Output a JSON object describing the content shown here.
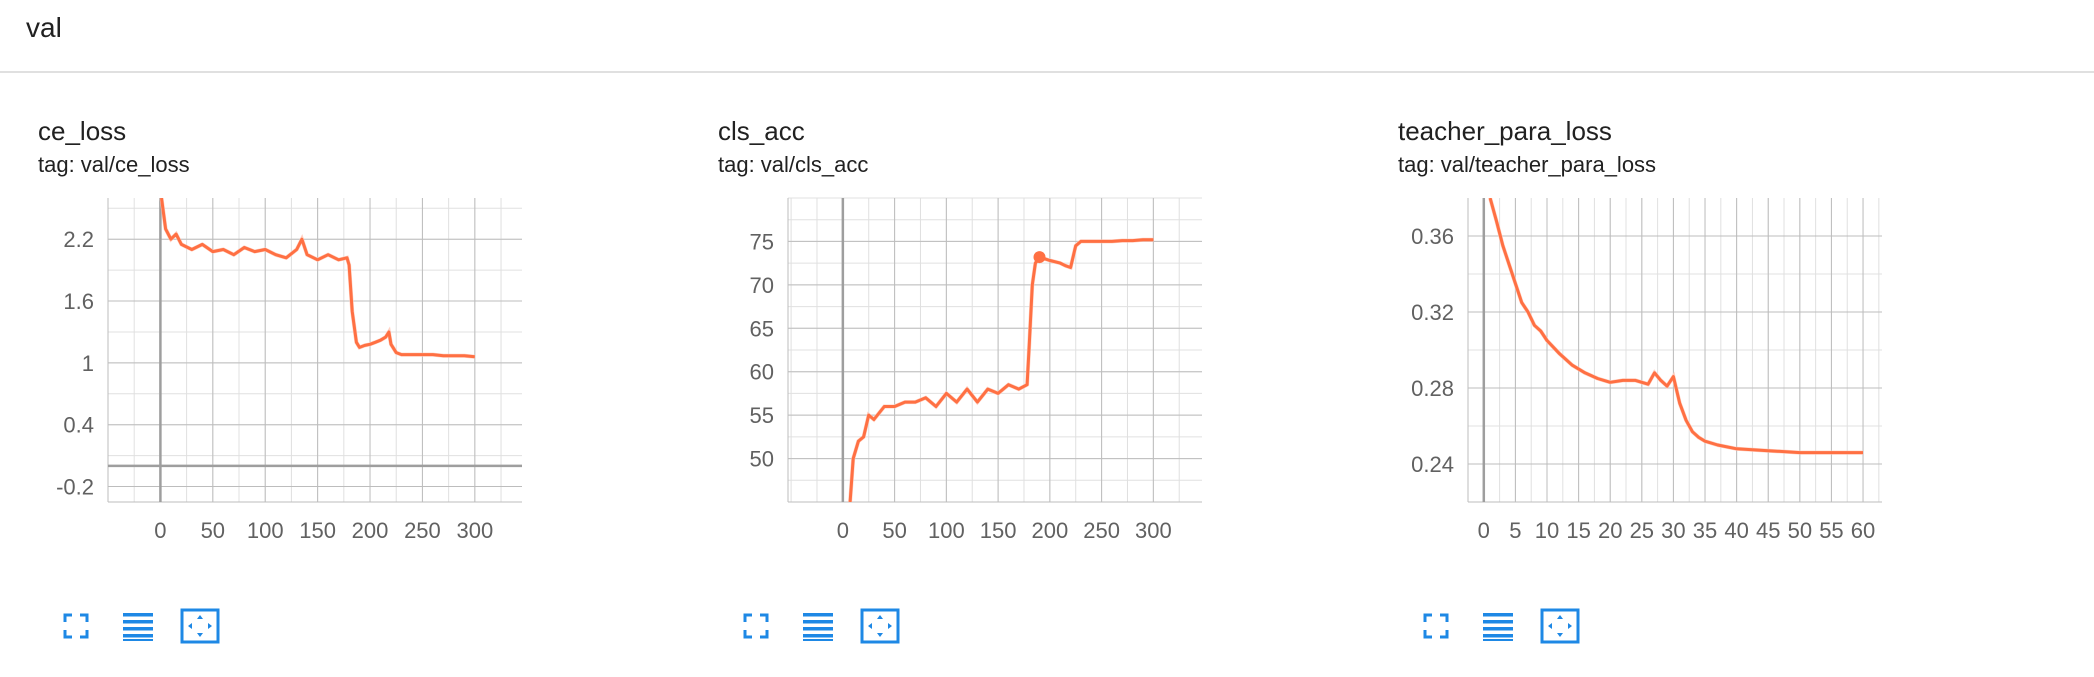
{
  "section": {
    "title": "val"
  },
  "colors": {
    "line": "#ff7043",
    "smoothed_raw": "#ffccbc",
    "grid": "#bdbdbd",
    "axis": "#9e9e9e",
    "tool": "#1e88e5"
  },
  "icons": [
    "fullscreen-icon",
    "lines-icon",
    "fit-domain-icon"
  ],
  "charts": [
    {
      "title": "ce_loss",
      "tag": "tag: val/ce_loss"
    },
    {
      "title": "cls_acc",
      "tag": "tag: val/cls_acc"
    },
    {
      "title": "teacher_para_loss",
      "tag": "tag: val/teacher_para_loss"
    }
  ],
  "chart_data": [
    {
      "type": "line",
      "title": "",
      "xlim": [
        -50,
        345
      ],
      "ylim": [
        -0.35,
        2.6
      ],
      "xticks": [
        0,
        50,
        100,
        150,
        200,
        250,
        300
      ],
      "xtick_labels": [
        "0",
        "50",
        "100",
        "150",
        "200",
        "250",
        "300"
      ],
      "yticks": [
        2.2,
        1.6,
        1,
        0.4,
        -0.2
      ],
      "ytick_labels": [
        "2.2",
        "1.6",
        "1",
        "0.4",
        "-0.2"
      ],
      "grid": true,
      "zero_axes": true,
      "series": [
        {
          "x": [
            1,
            5,
            10,
            15,
            20,
            30,
            40,
            50,
            60,
            70,
            80,
            90,
            100,
            110,
            120,
            130,
            135,
            140,
            150,
            160,
            170,
            178,
            180,
            183,
            187,
            190,
            195,
            200,
            205,
            210,
            215,
            218,
            220,
            225,
            230,
            240,
            250,
            260,
            270,
            280,
            290,
            300
          ],
          "y": [
            2.6,
            2.3,
            2.2,
            2.25,
            2.15,
            2.1,
            2.15,
            2.08,
            2.1,
            2.05,
            2.12,
            2.08,
            2.1,
            2.05,
            2.02,
            2.1,
            2.2,
            2.05,
            2.0,
            2.05,
            2.0,
            2.02,
            1.95,
            1.5,
            1.2,
            1.15,
            1.17,
            1.18,
            1.2,
            1.22,
            1.25,
            1.3,
            1.18,
            1.1,
            1.08,
            1.08,
            1.08,
            1.08,
            1.07,
            1.07,
            1.07,
            1.06
          ]
        }
      ]
    },
    {
      "type": "line",
      "title": "",
      "xlim": [
        -53,
        347
      ],
      "ylim": [
        45,
        80
      ],
      "xticks": [
        0,
        50,
        100,
        150,
        200,
        250,
        300
      ],
      "xtick_labels": [
        "0",
        "50",
        "100",
        "150",
        "200",
        "250",
        "300"
      ],
      "yticks": [
        75,
        70,
        65,
        60,
        55,
        50
      ],
      "ytick_labels": [
        "75",
        "70",
        "65",
        "60",
        "55",
        "50"
      ],
      "grid": true,
      "zero_axes": true,
      "highlight_point": {
        "x": 190,
        "y": 73.2
      },
      "series": [
        {
          "x": [
            7,
            10,
            15,
            20,
            25,
            30,
            40,
            50,
            60,
            70,
            80,
            90,
            100,
            110,
            120,
            130,
            140,
            150,
            160,
            170,
            178,
            180,
            183,
            186,
            190,
            195,
            200,
            210,
            215,
            220,
            225,
            230,
            240,
            250,
            260,
            270,
            280,
            290,
            300
          ],
          "y": [
            45,
            50,
            52,
            52.5,
            55,
            54.5,
            56,
            56,
            56.5,
            56.5,
            57,
            56,
            57.5,
            56.5,
            58,
            56.5,
            58,
            57.5,
            58.5,
            58,
            58.5,
            63,
            70,
            72.5,
            73.2,
            73,
            72.8,
            72.5,
            72.2,
            72,
            74.5,
            75,
            75,
            75,
            75,
            75.1,
            75.1,
            75.2,
            75.2
          ]
        }
      ]
    },
    {
      "type": "line",
      "title": "",
      "xlim": [
        -2.5,
        63
      ],
      "ylim": [
        0.22,
        0.38
      ],
      "xticks": [
        0,
        5,
        10,
        15,
        20,
        25,
        30,
        35,
        40,
        45,
        50,
        55,
        60
      ],
      "xtick_labels": [
        "0",
        "5",
        "10",
        "15",
        "20",
        "25",
        "30",
        "35",
        "40",
        "45",
        "50",
        "55",
        "60"
      ],
      "yticks": [
        0.36,
        0.32,
        0.28,
        0.24
      ],
      "ytick_labels": [
        "0.36",
        "0.32",
        "0.28",
        "0.24"
      ],
      "grid": true,
      "zero_axes": true,
      "series": [
        {
          "x": [
            1,
            2,
            3,
            4,
            5,
            6,
            7,
            8,
            9,
            10,
            12,
            14,
            16,
            18,
            20,
            22,
            24,
            26,
            27,
            28,
            29,
            30,
            31,
            32,
            33,
            34,
            35,
            37,
            40,
            45,
            50,
            55,
            60
          ],
          "y": [
            0.38,
            0.368,
            0.355,
            0.345,
            0.335,
            0.325,
            0.32,
            0.313,
            0.31,
            0.305,
            0.298,
            0.292,
            0.288,
            0.285,
            0.283,
            0.284,
            0.284,
            0.282,
            0.288,
            0.284,
            0.281,
            0.286,
            0.272,
            0.263,
            0.257,
            0.254,
            0.252,
            0.25,
            0.248,
            0.247,
            0.246,
            0.246,
            0.246
          ]
        }
      ]
    }
  ]
}
